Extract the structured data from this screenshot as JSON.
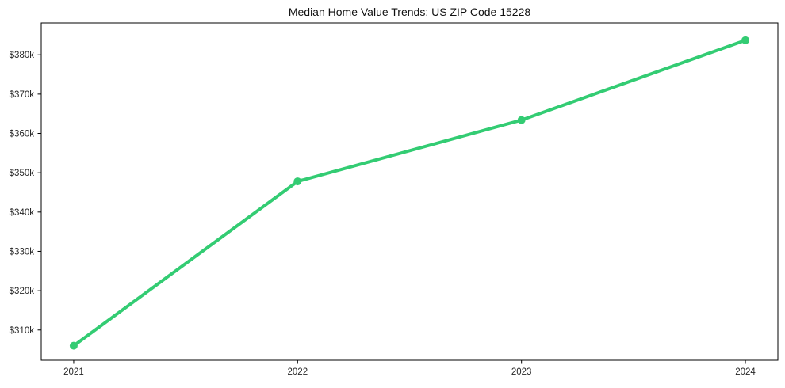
{
  "title": "Median Home Value Trends: US ZIP Code 15228",
  "chart_data": {
    "type": "line",
    "title": "Median Home Value Trends: US ZIP Code 15228",
    "x": [
      2021,
      2022,
      2023,
      2024
    ],
    "x_tick_labels": [
      "2021",
      "2022",
      "2023",
      "2024"
    ],
    "series": [
      {
        "name": "median-home-value",
        "values": [
          306000,
          347800,
          363400,
          383700
        ],
        "color": "#33cc73",
        "line_width": 4,
        "marker": "circle",
        "marker_size": 10
      }
    ],
    "y_tick_values": [
      310000,
      320000,
      330000,
      340000,
      350000,
      360000,
      370000,
      380000
    ],
    "y_tick_labels": [
      "$310k",
      "$320k",
      "$330k",
      "$340k",
      "$350k",
      "$360k",
      "$370k",
      "$380k"
    ],
    "xlim": [
      2020.855,
      2024.145
    ],
    "ylim": [
      302300,
      388100
    ],
    "xlabel": "",
    "ylabel": "",
    "grid": false,
    "legend": null
  },
  "colors": {
    "line": "#33cc73",
    "axis": "#000000",
    "text": "#262626",
    "background": "#ffffff"
  }
}
